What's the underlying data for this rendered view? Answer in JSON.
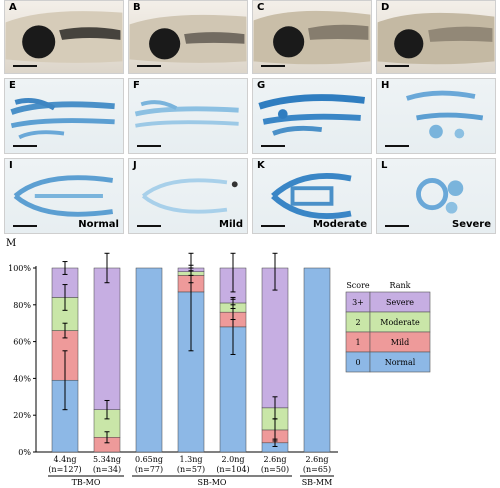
{
  "panels": {
    "row1": [
      "A",
      "B",
      "C",
      "D"
    ],
    "row2": [
      "E",
      "F",
      "G",
      "H"
    ],
    "row3": [
      "I",
      "J",
      "K",
      "L"
    ],
    "categories": [
      "Normal",
      "Mild",
      "Moderate",
      "Severe"
    ]
  },
  "chart_panel_label": "M",
  "chart_data": {
    "type": "bar",
    "stacked": true,
    "ylim": [
      0,
      100
    ],
    "yticks": [
      "0%",
      "20%",
      "40%",
      "60%",
      "80%",
      "100%"
    ],
    "categories": [
      {
        "dose": "4.4ng",
        "n": "(n=127)",
        "group": "TB-MO"
      },
      {
        "dose": "5.34ng",
        "n": "(n=34)",
        "group": "TB-MO"
      },
      {
        "dose": "0.65ng",
        "n": "(n=77)",
        "group": "SB-MO"
      },
      {
        "dose": "1.3ng",
        "n": "(n=57)",
        "group": "SB-MO"
      },
      {
        "dose": "2.0ng",
        "n": "(n=104)",
        "group": "SB-MO"
      },
      {
        "dose": "2.6ng",
        "n": "(n=50)",
        "group": "SB-MO"
      },
      {
        "dose": "2.6ng",
        "n": "(n=65)",
        "group": "SB-MM"
      }
    ],
    "groups": [
      {
        "label": "TB-MO",
        "from": 0,
        "to": 1
      },
      {
        "label": "SB-MO",
        "from": 2,
        "to": 5
      },
      {
        "label": "SB-MM",
        "from": 6,
        "to": 6
      }
    ],
    "series": [
      {
        "name": "Normal",
        "score": "0",
        "color": "#8db8e6",
        "values": [
          39,
          0,
          100,
          87,
          68,
          5,
          100
        ]
      },
      {
        "name": "Mild",
        "score": "1",
        "color": "#ee9a9a",
        "values": [
          27,
          8,
          0,
          9,
          8,
          7,
          0
        ]
      },
      {
        "name": "Moderate",
        "score": "2",
        "color": "#c9e6a8",
        "values": [
          18,
          15,
          0,
          2,
          5,
          12,
          0
        ]
      },
      {
        "name": "Severe",
        "score": "3+",
        "color": "#c6aee2",
        "values": [
          16,
          77,
          0,
          2,
          19,
          76,
          0
        ]
      }
    ],
    "errors": [
      [
        [
          39,
          16
        ],
        [
          66,
          4
        ],
        [
          84,
          7
        ],
        [
          100,
          3.5
        ]
      ],
      [
        [
          8,
          3
        ],
        [
          23,
          5
        ],
        [
          100,
          8
        ]
      ],
      [
        [
          100,
          0
        ]
      ],
      [
        [
          87,
          32
        ],
        [
          96,
          4
        ],
        [
          98,
          2
        ],
        [
          100,
          1.5
        ]
      ],
      [
        [
          68,
          15
        ],
        [
          76,
          4
        ],
        [
          81,
          3
        ],
        [
          100,
          13
        ]
      ],
      [
        [
          5,
          2
        ],
        [
          12,
          6
        ],
        [
          24,
          6
        ],
        [
          100,
          12
        ]
      ],
      [
        [
          100,
          0
        ]
      ]
    ],
    "legend": {
      "header_score": "Score",
      "header_rank": "Rank",
      "rows": [
        {
          "score": "3+",
          "rank": "Severe",
          "color": "#c6aee2"
        },
        {
          "score": "2",
          "rank": "Moderate",
          "color": "#c9e6a8"
        },
        {
          "score": "1",
          "rank": "Mild",
          "color": "#ee9a9a"
        },
        {
          "score": "0",
          "rank": "Normal",
          "color": "#8db8e6"
        }
      ]
    }
  }
}
